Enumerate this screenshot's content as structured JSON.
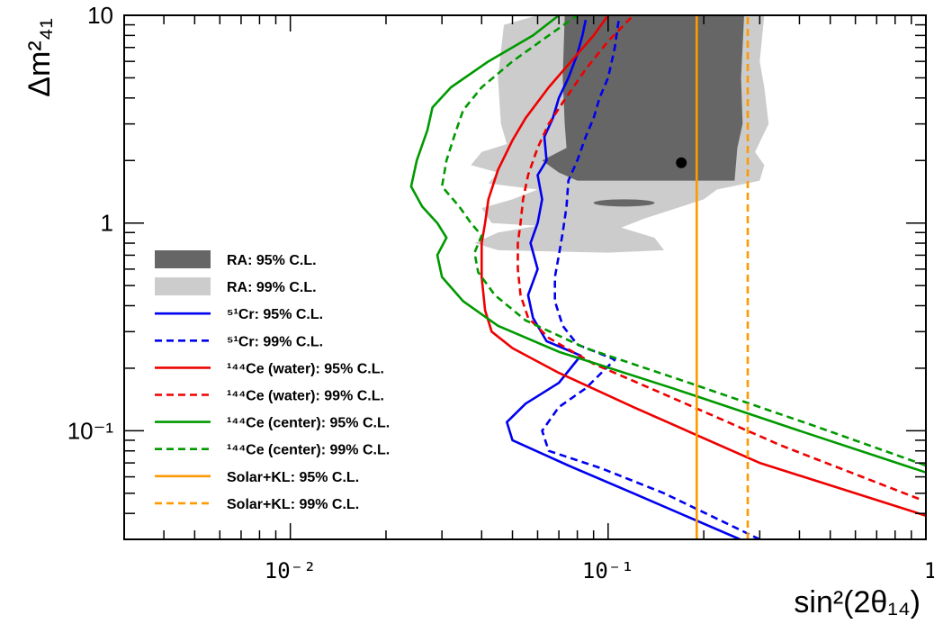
{
  "chart_data": {
    "type": "line",
    "xlabel": "sin²(2θ₁₄)",
    "ylabel": "Δm²₄₁",
    "x_scale": "log",
    "y_scale": "log",
    "xlim": [
      0.003,
      1
    ],
    "ylim": [
      0.03,
      10
    ],
    "x_ticks": [
      {
        "value": 0.01,
        "label": "10⁻²"
      },
      {
        "value": 0.1,
        "label": "10⁻¹"
      },
      {
        "value": 1,
        "label": "1"
      }
    ],
    "y_ticks": [
      {
        "value": 0.1,
        "label": "10⁻¹"
      },
      {
        "value": 1,
        "label": "1"
      },
      {
        "value": 10,
        "label": "10"
      }
    ],
    "grid": false,
    "legend_position": "left",
    "regions": [
      {
        "name": "RA: 99% C.L.",
        "color": "#cccccc",
        "polygon": [
          [
            0.06,
            10
          ],
          [
            0.047,
            9
          ],
          [
            0.045,
            5
          ],
          [
            0.046,
            3
          ],
          [
            0.048,
            2.4
          ],
          [
            0.04,
            2.2
          ],
          [
            0.037,
            1.9
          ],
          [
            0.045,
            1.75
          ],
          [
            0.042,
            1.55
          ],
          [
            0.06,
            1.45
          ],
          [
            0.05,
            1.3
          ],
          [
            0.04,
            1.18
          ],
          [
            0.043,
            1.0
          ],
          [
            0.06,
            0.97
          ],
          [
            0.045,
            0.9
          ],
          [
            0.038,
            0.8
          ],
          [
            0.045,
            0.74
          ],
          [
            0.1,
            0.72
          ],
          [
            0.15,
            0.74
          ],
          [
            0.14,
            0.85
          ],
          [
            0.11,
            0.95
          ],
          [
            0.13,
            1.05
          ],
          [
            0.2,
            1.3
          ],
          [
            0.22,
            1.45
          ],
          [
            0.3,
            1.6
          ],
          [
            0.31,
            1.9
          ],
          [
            0.29,
            2.2
          ],
          [
            0.32,
            3.0
          ],
          [
            0.31,
            4.5
          ],
          [
            0.3,
            6.0
          ],
          [
            0.31,
            10
          ]
        ]
      },
      {
        "name": "RA: 95% C.L.",
        "color": "#666666",
        "polygon": [
          [
            0.073,
            10
          ],
          [
            0.072,
            5
          ],
          [
            0.073,
            3
          ],
          [
            0.074,
            2.3
          ],
          [
            0.062,
            2.0
          ],
          [
            0.07,
            1.75
          ],
          [
            0.08,
            1.6
          ],
          [
            0.25,
            1.6
          ],
          [
            0.255,
            2.3
          ],
          [
            0.265,
            3.0
          ],
          [
            0.262,
            5.0
          ],
          [
            0.268,
            10
          ]
        ]
      },
      {
        "name": "RA: 95% C.L. (island)",
        "color": "#666666",
        "ellipse": {
          "x_range": [
            0.09,
            0.14
          ],
          "y": 1.25
        }
      }
    ],
    "best_fit": {
      "x": 0.17,
      "y": 1.95
    },
    "series": [
      {
        "name": "⁵¹Cr: 95% C.L.",
        "color": "#0000ee",
        "dash": "solid",
        "points": [
          [
            0.26,
            0.03
          ],
          [
            0.12,
            0.05
          ],
          [
            0.075,
            0.068
          ],
          [
            0.05,
            0.09
          ],
          [
            0.048,
            0.11
          ],
          [
            0.055,
            0.135
          ],
          [
            0.07,
            0.17
          ],
          [
            0.082,
            0.23
          ],
          [
            0.064,
            0.27
          ],
          [
            0.058,
            0.35
          ],
          [
            0.056,
            0.45
          ],
          [
            0.06,
            0.6
          ],
          [
            0.057,
            0.8
          ],
          [
            0.06,
            1.0
          ],
          [
            0.062,
            1.3
          ],
          [
            0.06,
            1.7
          ],
          [
            0.064,
            2.0
          ],
          [
            0.063,
            2.6
          ],
          [
            0.067,
            3.2
          ],
          [
            0.07,
            4.0
          ],
          [
            0.075,
            5.0
          ],
          [
            0.08,
            6.5
          ],
          [
            0.083,
            8.0
          ],
          [
            0.085,
            9.5
          ]
        ]
      },
      {
        "name": "⁵¹Cr: 99% C.L.",
        "color": "#0000ee",
        "dash": "dashed",
        "points": [
          [
            0.3,
            0.03
          ],
          [
            0.15,
            0.05
          ],
          [
            0.095,
            0.066
          ],
          [
            0.065,
            0.08
          ],
          [
            0.062,
            0.1
          ],
          [
            0.07,
            0.13
          ],
          [
            0.085,
            0.16
          ],
          [
            0.105,
            0.22
          ],
          [
            0.08,
            0.26
          ],
          [
            0.072,
            0.32
          ],
          [
            0.068,
            0.42
          ],
          [
            0.068,
            0.55
          ],
          [
            0.07,
            0.7
          ],
          [
            0.072,
            0.9
          ],
          [
            0.074,
            1.2
          ],
          [
            0.075,
            1.6
          ],
          [
            0.08,
            2.0
          ],
          [
            0.085,
            2.6
          ],
          [
            0.09,
            3.2
          ],
          [
            0.094,
            4.0
          ],
          [
            0.1,
            5.0
          ],
          [
            0.105,
            7.0
          ],
          [
            0.108,
            9.5
          ]
        ]
      },
      {
        "name": "¹⁴⁴Ce (water): 95% C.L.",
        "color": "#ee0000",
        "dash": "solid",
        "points": [
          [
            1,
            0.039
          ],
          [
            0.3,
            0.07
          ],
          [
            0.12,
            0.13
          ],
          [
            0.07,
            0.19
          ],
          [
            0.05,
            0.25
          ],
          [
            0.043,
            0.3
          ],
          [
            0.041,
            0.38
          ],
          [
            0.04,
            0.55
          ],
          [
            0.04,
            0.8
          ],
          [
            0.041,
            1.0
          ],
          [
            0.042,
            1.3
          ],
          [
            0.045,
            1.8
          ],
          [
            0.05,
            2.5
          ],
          [
            0.055,
            3.2
          ],
          [
            0.065,
            4.5
          ],
          [
            0.08,
            6.5
          ],
          [
            0.09,
            8.0
          ],
          [
            0.1,
            10
          ]
        ]
      },
      {
        "name": "¹⁴⁴Ce (water): 99% C.L.",
        "color": "#ee0000",
        "dash": "dashed",
        "points": [
          [
            0.95,
            0.047
          ],
          [
            0.35,
            0.085
          ],
          [
            0.15,
            0.15
          ],
          [
            0.09,
            0.21
          ],
          [
            0.065,
            0.28
          ],
          [
            0.056,
            0.35
          ],
          [
            0.053,
            0.45
          ],
          [
            0.052,
            0.6
          ],
          [
            0.052,
            0.8
          ],
          [
            0.053,
            1.0
          ],
          [
            0.054,
            1.3
          ],
          [
            0.056,
            1.7
          ],
          [
            0.06,
            2.3
          ],
          [
            0.065,
            3.0
          ],
          [
            0.072,
            3.8
          ],
          [
            0.085,
            5.5
          ],
          [
            0.1,
            7.5
          ],
          [
            0.12,
            10
          ]
        ]
      },
      {
        "name": "¹⁴⁴Ce (center): 95% C.L.",
        "color": "#009900",
        "dash": "solid",
        "points": [
          [
            1,
            0.063
          ],
          [
            0.4,
            0.1
          ],
          [
            0.16,
            0.16
          ],
          [
            0.07,
            0.24
          ],
          [
            0.045,
            0.32
          ],
          [
            0.035,
            0.42
          ],
          [
            0.03,
            0.55
          ],
          [
            0.029,
            0.7
          ],
          [
            0.031,
            0.85
          ],
          [
            0.029,
            1.0
          ],
          [
            0.026,
            1.2
          ],
          [
            0.024,
            1.5
          ],
          [
            0.025,
            2.0
          ],
          [
            0.027,
            2.8
          ],
          [
            0.028,
            3.6
          ],
          [
            0.032,
            4.5
          ],
          [
            0.042,
            6.0
          ],
          [
            0.058,
            8.0
          ],
          [
            0.07,
            10
          ]
        ]
      },
      {
        "name": "¹⁴⁴Ce (center): 99% C.L.",
        "color": "#009900",
        "dash": "dashed",
        "points": [
          [
            1,
            0.068
          ],
          [
            0.45,
            0.105
          ],
          [
            0.18,
            0.17
          ],
          [
            0.085,
            0.25
          ],
          [
            0.055,
            0.34
          ],
          [
            0.044,
            0.45
          ],
          [
            0.039,
            0.58
          ],
          [
            0.038,
            0.72
          ],
          [
            0.04,
            0.87
          ],
          [
            0.037,
            1.0
          ],
          [
            0.034,
            1.2
          ],
          [
            0.03,
            1.5
          ],
          [
            0.031,
            2.0
          ],
          [
            0.033,
            2.7
          ],
          [
            0.035,
            3.5
          ],
          [
            0.04,
            4.5
          ],
          [
            0.05,
            6.0
          ],
          [
            0.065,
            8.0
          ],
          [
            0.08,
            10
          ]
        ]
      },
      {
        "name": "Solar+KL: 95% C.L.",
        "color": "#ff9900",
        "dash": "solid",
        "points": [
          [
            0.19,
            0.03
          ],
          [
            0.19,
            10
          ]
        ]
      },
      {
        "name": "Solar+KL: 99% C.L.",
        "color": "#ff9900",
        "dash": "dashed",
        "points": [
          [
            0.275,
            0.03
          ],
          [
            0.275,
            10
          ]
        ]
      }
    ],
    "legend": [
      {
        "label": "RA: 95% C.L.",
        "kind": "box",
        "color": "#666666"
      },
      {
        "label": "RA: 99% C.L.",
        "kind": "box",
        "color": "#cccccc"
      },
      {
        "label": "⁵¹Cr: 95% C.L.",
        "kind": "line",
        "color": "#0000ee",
        "dash": "solid"
      },
      {
        "label": "⁵¹Cr: 99% C.L.",
        "kind": "line",
        "color": "#0000ee",
        "dash": "dashed"
      },
      {
        "label": "¹⁴⁴Ce (water): 95% C.L.",
        "kind": "line",
        "color": "#ee0000",
        "dash": "solid"
      },
      {
        "label": "¹⁴⁴Ce (water): 99% C.L.",
        "kind": "line",
        "color": "#ee0000",
        "dash": "dashed"
      },
      {
        "label": "¹⁴⁴Ce (center): 95% C.L.",
        "kind": "line",
        "color": "#009900",
        "dash": "solid"
      },
      {
        "label": "¹⁴⁴Ce (center): 99% C.L.",
        "kind": "line",
        "color": "#009900",
        "dash": "dashed"
      },
      {
        "label": "Solar+KL: 95% C.L.",
        "kind": "line",
        "color": "#ff9900",
        "dash": "solid"
      },
      {
        "label": "Solar+KL: 99% C.L.",
        "kind": "line",
        "color": "#ff9900",
        "dash": "dashed"
      }
    ]
  }
}
